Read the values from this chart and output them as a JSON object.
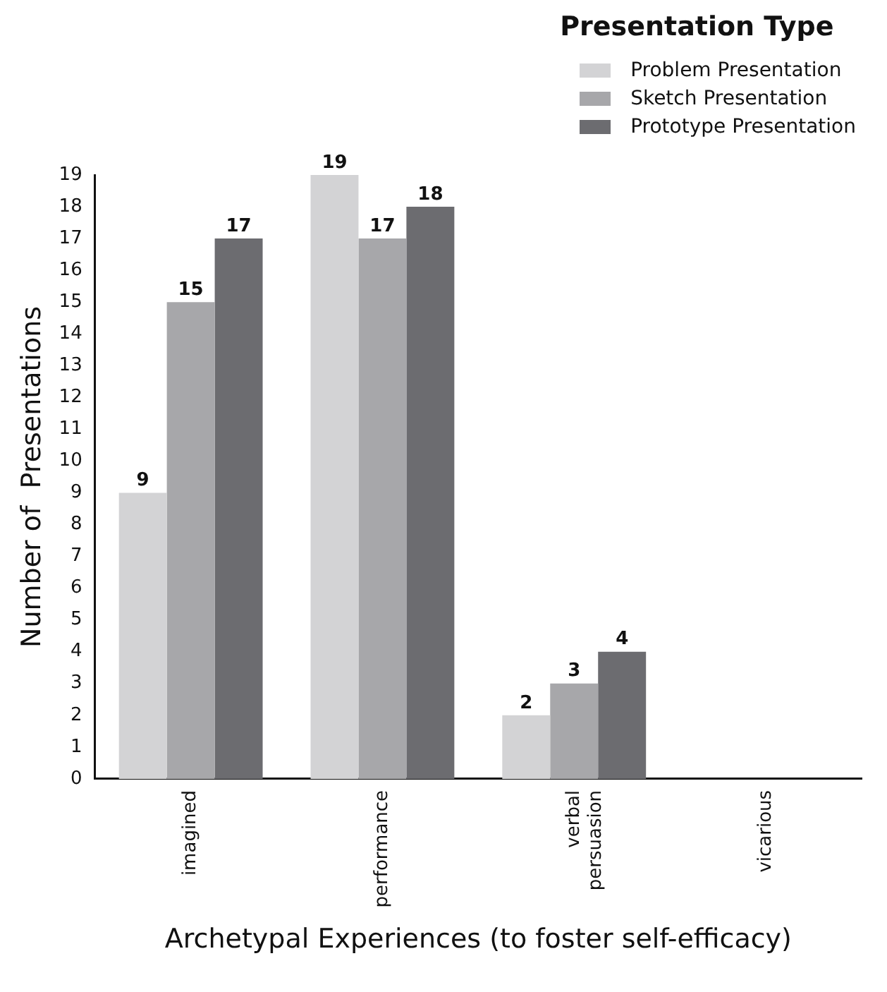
{
  "chart_data": {
    "type": "bar",
    "xlabel": "Archetypal Experiences (to foster self-efficacy)",
    "ylabel": "Number of  Presentations",
    "legend_title": "Presentation Type",
    "categories": [
      "imagined",
      "performance",
      "verbal persuasion",
      "vicarious"
    ],
    "series": [
      {
        "name": "Problem Presentation",
        "color": "#d3d3d5",
        "values": [
          9,
          19,
          2,
          null
        ]
      },
      {
        "name": "Sketch Presentation",
        "color": "#a7a7aa",
        "values": [
          15,
          17,
          3,
          null
        ]
      },
      {
        "name": "Prototype Presentation",
        "color": "#6c6c70",
        "values": [
          17,
          18,
          4,
          null
        ]
      }
    ],
    "ylim": [
      0,
      19
    ],
    "yticks": [
      0,
      1,
      2,
      3,
      4,
      5,
      6,
      7,
      8,
      9,
      10,
      11,
      12,
      13,
      14,
      15,
      16,
      17,
      18,
      19
    ],
    "grid": false,
    "legend": "top right",
    "data_labels": true
  }
}
